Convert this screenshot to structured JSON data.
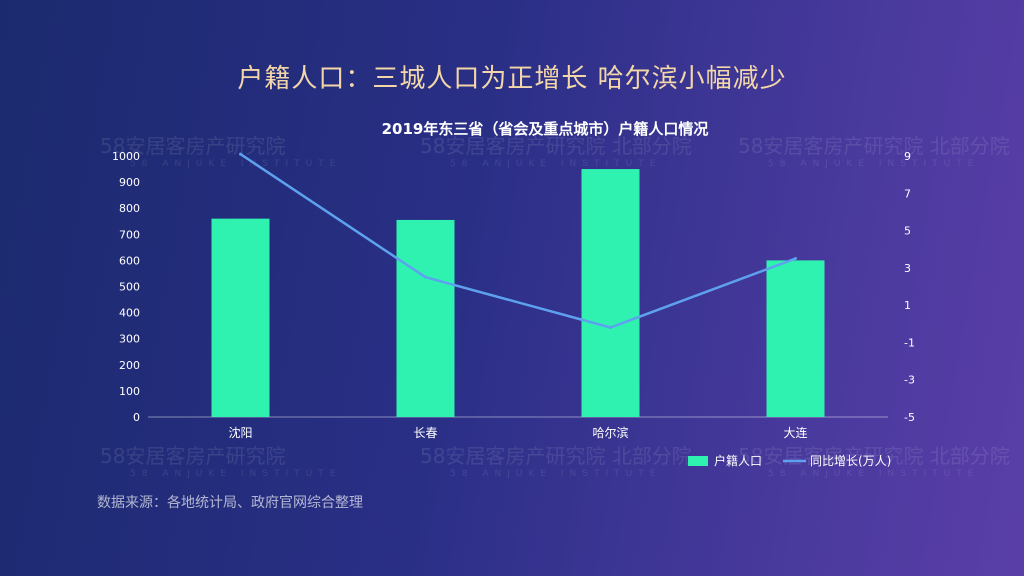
{
  "headline": "户籍人口：三城人口为正增长 哈尔滨小幅减少",
  "watermark": {
    "text": "58安居客房产研究院",
    "branch": "北部分院",
    "sub": "58 ANJUKE INSTITUTE"
  },
  "source": "数据来源：各地统计局、政府官网综合整理",
  "colors": {
    "bar": "#2ff2b0",
    "line": "#5ea2ef",
    "axis_text": "#ffffff",
    "title": "#ffffff"
  },
  "chart_data": {
    "type": "bar",
    "title": "2019年东三省（省会及重点城市）户籍人口情况",
    "categories": [
      "沈阳",
      "长春",
      "哈尔滨",
      "大连"
    ],
    "series": [
      {
        "name": "户籍人口",
        "type": "bar",
        "axis": "left",
        "values": [
          760,
          755,
          950,
          600
        ]
      },
      {
        "name": "同比增长(万人)",
        "type": "line",
        "axis": "right",
        "values": [
          9.1,
          2.5,
          -0.2,
          3.5
        ]
      }
    ],
    "y_left": {
      "range": [
        0,
        1000
      ],
      "ticks": [
        0,
        100,
        200,
        300,
        400,
        500,
        600,
        700,
        800,
        900,
        1000
      ]
    },
    "y_right": {
      "range": [
        -5,
        9
      ],
      "ticks": [
        "-5",
        "-3",
        "-1",
        "1",
        "3",
        "5",
        "7",
        "9"
      ]
    },
    "legend_position": "bottom-right",
    "grid": false
  }
}
